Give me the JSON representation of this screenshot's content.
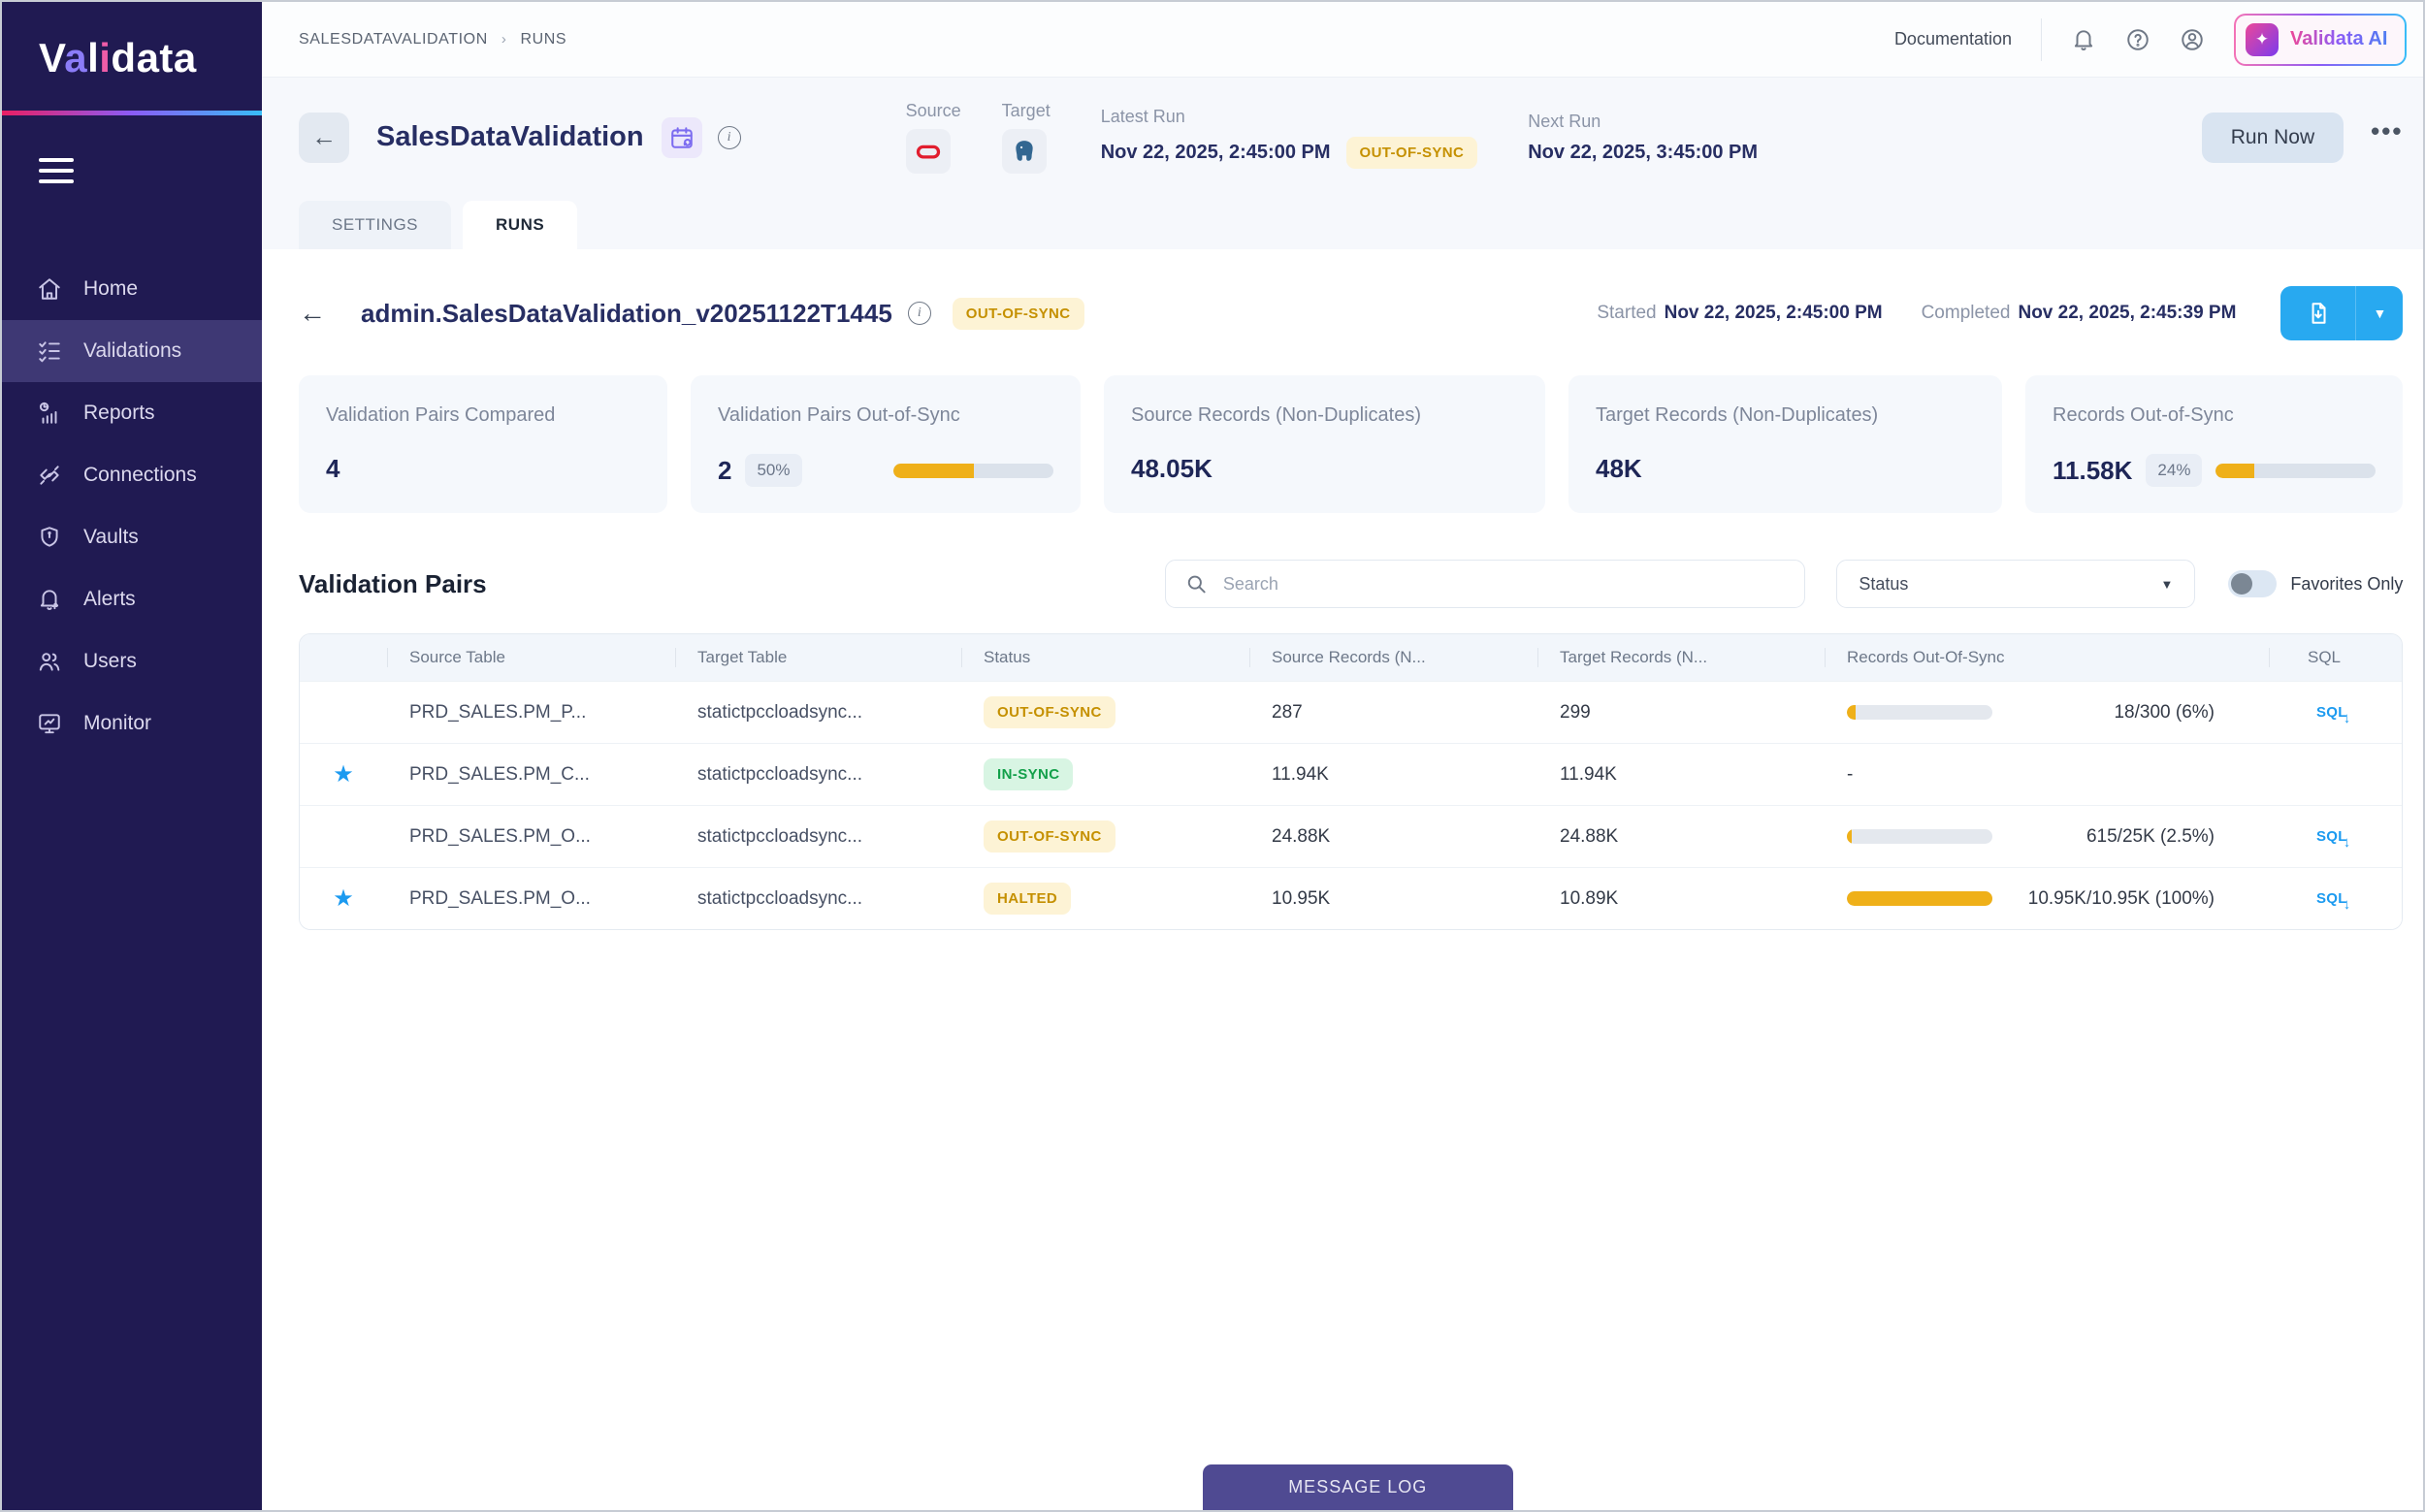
{
  "brand": {
    "logo_letters": [
      "V",
      "a",
      "l",
      "i",
      "d",
      "a",
      "t",
      "a"
    ],
    "ai_button": "Validata AI"
  },
  "topbar": {
    "breadcrumb": [
      "SALESDATAVALIDATION",
      "RUNS"
    ],
    "documentation": "Documentation"
  },
  "sidebar": {
    "items": [
      {
        "label": "Home"
      },
      {
        "label": "Validations"
      },
      {
        "label": "Reports"
      },
      {
        "label": "Connections"
      },
      {
        "label": "Vaults"
      },
      {
        "label": "Alerts"
      },
      {
        "label": "Users"
      },
      {
        "label": "Monitor"
      }
    ]
  },
  "header": {
    "title": "SalesDataValidation",
    "source_label": "Source",
    "target_label": "Target",
    "latest_run_label": "Latest Run",
    "latest_run_value": "Nov 22, 2025, 2:45:00 PM",
    "latest_run_status": "OUT-OF-SYNC",
    "next_run_label": "Next Run",
    "next_run_value": "Nov 22, 2025, 3:45:00 PM",
    "run_now": "Run Now",
    "tabs": [
      {
        "label": "SETTINGS"
      },
      {
        "label": "RUNS"
      }
    ]
  },
  "run": {
    "name": "admin.SalesDataValidation_v20251122T1445",
    "status": "OUT-OF-SYNC",
    "started_label": "Started",
    "started": "Nov 22, 2025, 2:45:00 PM",
    "completed_label": "Completed",
    "completed": "Nov 22, 2025, 2:45:39 PM"
  },
  "stats": [
    {
      "label": "Validation Pairs Compared",
      "value": "4"
    },
    {
      "label": "Validation Pairs Out-of-Sync",
      "value": "2",
      "pct": "50%",
      "bar": 50
    },
    {
      "label": "Source Records (Non-Duplicates)",
      "value": "48.05K"
    },
    {
      "label": "Target Records (Non-Duplicates)",
      "value": "48K"
    },
    {
      "label": "Records Out-of-Sync",
      "value": "11.58K",
      "pct": "24%",
      "bar": 24
    }
  ],
  "pairs": {
    "heading": "Validation Pairs",
    "search_placeholder": "Search",
    "status_filter_label": "Status",
    "favorites_label": "Favorites Only",
    "columns": [
      "Source Table",
      "Target Table",
      "Status",
      "Source Records (N...",
      "Target Records (N...",
      "Records Out-Of-Sync",
      "SQL"
    ],
    "rows": [
      {
        "favorite": false,
        "source_table": "PRD_SALES.PM_P...",
        "target_table": "statictpccloadsync...",
        "status": "OUT-OF-SYNC",
        "source_records": "287",
        "target_records": "299",
        "oos_text": "18/300 (6%)",
        "oos_bar": 6,
        "sql": "SQL"
      },
      {
        "favorite": true,
        "source_table": "PRD_SALES.PM_C...",
        "target_table": "statictpccloadsync...",
        "status": "IN-SYNC",
        "source_records": "11.94K",
        "target_records": "11.94K",
        "oos_text": "-",
        "oos_bar": 0,
        "sql": ""
      },
      {
        "favorite": false,
        "source_table": "PRD_SALES.PM_O...",
        "target_table": "statictpccloadsync...",
        "status": "OUT-OF-SYNC",
        "source_records": "24.88K",
        "target_records": "24.88K",
        "oos_text": "615/25K (2.5%)",
        "oos_bar": 3,
        "sql": "SQL"
      },
      {
        "favorite": true,
        "source_table": "PRD_SALES.PM_O...",
        "target_table": "statictpccloadsync...",
        "status": "HALTED",
        "source_records": "10.95K",
        "target_records": "10.89K",
        "oos_text": "10.95K/10.95K (100%)",
        "oos_bar": 100,
        "sql": "SQL"
      }
    ]
  },
  "footer": {
    "message_log": "MESSAGE LOG"
  },
  "colors": {
    "sidebar_bg": "#201a52",
    "accent_amber": "#efb019",
    "accent_blue": "#28a9f0",
    "warn_text": "#c59000",
    "ok_text": "#13a04a",
    "brand_pink": "#ec4899",
    "brand_purple": "#8b5cf6"
  }
}
